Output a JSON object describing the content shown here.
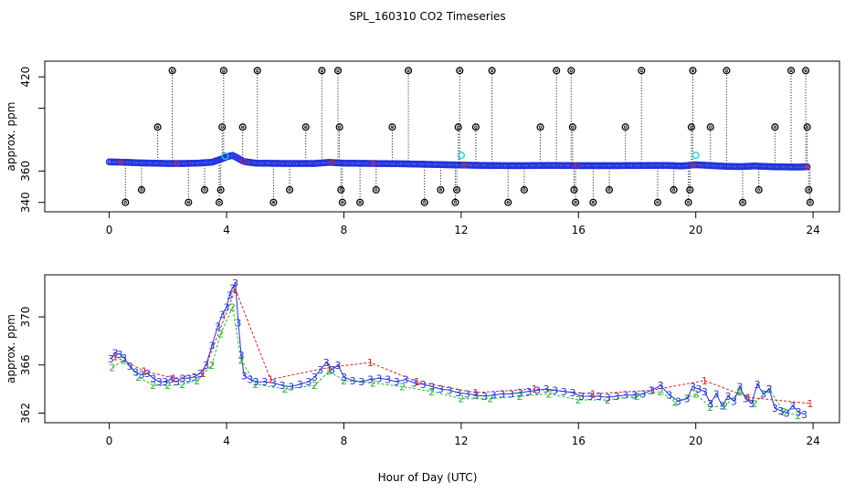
{
  "title": "SPL_160310  CO2 Timeseries",
  "xlabel": "Hour of Day (UTC)",
  "chart_data": [
    {
      "type": "scatter",
      "panel": "top",
      "ylabel": "approx. ppm",
      "xlim": [
        -2.2,
        24.9
      ],
      "ylim": [
        334,
        430
      ],
      "x_ticks": [
        0,
        4,
        8,
        12,
        16,
        20,
        24
      ],
      "y_ticks": [
        340,
        360,
        400,
        420
      ],
      "y_tick_labels": [
        "340",
        "360",
        "",
        "420"
      ],
      "baseline": {
        "x": [
          0.0,
          0.5,
          1.0,
          1.5,
          2.0,
          2.5,
          3.0,
          3.5,
          3.8,
          4.0,
          4.2,
          4.4,
          4.6,
          5.0,
          6.0,
          7.0,
          7.5,
          8.0,
          9.0,
          10.0,
          11.0,
          12.0,
          13.0,
          14.0,
          15.0,
          16.0,
          17.0,
          18.0,
          19.0,
          19.5,
          20.0,
          20.5,
          21.0,
          21.5,
          22.0,
          22.5,
          23.0,
          23.5,
          23.8
        ],
        "values": [
          365.8,
          365.6,
          365.2,
          365.0,
          364.8,
          364.8,
          365.0,
          365.6,
          367.5,
          369.0,
          370.0,
          368.0,
          366.0,
          365.0,
          364.8,
          364.8,
          365.5,
          365.0,
          364.8,
          364.6,
          364.2,
          363.8,
          363.5,
          363.4,
          363.6,
          363.4,
          363.4,
          363.5,
          363.6,
          363.2,
          364.0,
          363.5,
          363.0,
          362.8,
          363.2,
          362.8,
          362.6,
          362.5,
          362.7
        ]
      },
      "cyan_points": {
        "x": [
          3.95,
          12.0,
          20.0
        ],
        "values": [
          369.5,
          370.0,
          370.0
        ]
      },
      "spikes": [
        {
          "x": 0.55,
          "value": 340
        },
        {
          "x": 1.1,
          "value": 348
        },
        {
          "x": 1.65,
          "value": 388
        },
        {
          "x": 2.15,
          "value": 424
        },
        {
          "x": 2.7,
          "value": 340
        },
        {
          "x": 3.25,
          "value": 348
        },
        {
          "x": 3.75,
          "value": 340
        },
        {
          "x": 3.8,
          "value": 348
        },
        {
          "x": 3.85,
          "value": 388
        },
        {
          "x": 3.9,
          "value": 424
        },
        {
          "x": 4.55,
          "value": 388
        },
        {
          "x": 5.05,
          "value": 424
        },
        {
          "x": 5.6,
          "value": 340
        },
        {
          "x": 6.15,
          "value": 348
        },
        {
          "x": 6.7,
          "value": 388
        },
        {
          "x": 7.25,
          "value": 424
        },
        {
          "x": 7.8,
          "value": 424
        },
        {
          "x": 7.85,
          "value": 388
        },
        {
          "x": 7.9,
          "value": 348
        },
        {
          "x": 7.95,
          "value": 340
        },
        {
          "x": 8.55,
          "value": 340
        },
        {
          "x": 9.1,
          "value": 348
        },
        {
          "x": 9.65,
          "value": 388
        },
        {
          "x": 10.2,
          "value": 424
        },
        {
          "x": 10.75,
          "value": 340
        },
        {
          "x": 11.3,
          "value": 348
        },
        {
          "x": 11.8,
          "value": 340
        },
        {
          "x": 11.85,
          "value": 348
        },
        {
          "x": 11.9,
          "value": 388
        },
        {
          "x": 11.95,
          "value": 424
        },
        {
          "x": 12.5,
          "value": 388
        },
        {
          "x": 13.05,
          "value": 424
        },
        {
          "x": 13.6,
          "value": 340
        },
        {
          "x": 14.15,
          "value": 348
        },
        {
          "x": 14.7,
          "value": 388
        },
        {
          "x": 15.25,
          "value": 424
        },
        {
          "x": 15.75,
          "value": 424
        },
        {
          "x": 15.8,
          "value": 388
        },
        {
          "x": 15.85,
          "value": 348
        },
        {
          "x": 15.9,
          "value": 340
        },
        {
          "x": 16.5,
          "value": 340
        },
        {
          "x": 17.05,
          "value": 348
        },
        {
          "x": 17.6,
          "value": 388
        },
        {
          "x": 18.15,
          "value": 424
        },
        {
          "x": 18.7,
          "value": 340
        },
        {
          "x": 19.25,
          "value": 348
        },
        {
          "x": 19.75,
          "value": 340
        },
        {
          "x": 19.8,
          "value": 348
        },
        {
          "x": 19.85,
          "value": 388
        },
        {
          "x": 19.9,
          "value": 424
        },
        {
          "x": 20.5,
          "value": 388
        },
        {
          "x": 21.05,
          "value": 424
        },
        {
          "x": 21.6,
          "value": 340
        },
        {
          "x": 22.15,
          "value": 348
        },
        {
          "x": 22.7,
          "value": 388
        },
        {
          "x": 23.25,
          "value": 424
        },
        {
          "x": 23.75,
          "value": 424
        },
        {
          "x": 23.8,
          "value": 388
        },
        {
          "x": 23.85,
          "value": 348
        },
        {
          "x": 23.9,
          "value": 340
        }
      ]
    },
    {
      "type": "scatter",
      "panel": "bottom",
      "ylabel": "approx. ppm",
      "xlim": [
        -2.2,
        24.9
      ],
      "ylim": [
        361.2,
        373.5
      ],
      "x_ticks": [
        0,
        4,
        8,
        12,
        16,
        20,
        24
      ],
      "y_ticks": [
        362,
        366,
        370
      ],
      "marker_series": [
        {
          "marker": "3",
          "color": "#2233dd"
        },
        {
          "marker": "2",
          "color": "#22bb22"
        },
        {
          "marker": "1",
          "color": "#dd2222"
        }
      ],
      "series": [
        {
          "marker": "3",
          "x": [
            0.05,
            0.2,
            0.35,
            0.5,
            0.7,
            0.9,
            1.1,
            1.3,
            1.5,
            1.7,
            1.9,
            2.1,
            2.3,
            2.5,
            2.7,
            2.9,
            3.1,
            3.3,
            3.5,
            3.7,
            3.85,
            4.0,
            4.1,
            4.2,
            4.3,
            4.4,
            4.5,
            4.6,
            4.8,
            5.0,
            5.3,
            5.6,
            5.9,
            6.2,
            6.5,
            6.8,
            7.0,
            7.2,
            7.4,
            7.6,
            7.8,
            8.0,
            8.3,
            8.6,
            8.9,
            9.2,
            9.5,
            9.8,
            10.1,
            10.4,
            10.7,
            11.0,
            11.3,
            11.6,
            11.9,
            12.2,
            12.5,
            12.8,
            13.1,
            13.4,
            13.7,
            14.0,
            14.3,
            14.6,
            14.9,
            15.2,
            15.5,
            15.8,
            16.1,
            16.4,
            16.7,
            17.0,
            17.3,
            17.6,
            17.9,
            18.2,
            18.5,
            18.8,
            19.1,
            19.4,
            19.7,
            19.9,
            20.1,
            20.3,
            20.5,
            20.7,
            20.9,
            21.1,
            21.3,
            21.5,
            21.7,
            21.9,
            22.1,
            22.3,
            22.5,
            22.7,
            22.9,
            23.1,
            23.3,
            23.5,
            23.7
          ],
          "values": [
            366.5,
            367.0,
            366.9,
            366.6,
            365.9,
            365.4,
            365.2,
            365.3,
            364.9,
            364.6,
            364.6,
            364.8,
            364.6,
            364.9,
            364.9,
            365.0,
            365.3,
            366.0,
            367.6,
            369.2,
            370.2,
            370.8,
            371.8,
            372.4,
            372.8,
            369.5,
            366.8,
            365.1,
            364.8,
            364.6,
            364.6,
            364.5,
            364.3,
            364.2,
            364.4,
            364.6,
            365.0,
            365.6,
            366.2,
            365.6,
            366.0,
            365.0,
            364.7,
            364.6,
            364.8,
            364.9,
            364.8,
            364.6,
            364.8,
            364.5,
            364.4,
            364.2,
            364.0,
            363.9,
            363.7,
            363.6,
            363.5,
            363.4,
            363.5,
            363.6,
            363.6,
            363.7,
            363.8,
            363.9,
            364.0,
            363.9,
            363.8,
            363.7,
            363.4,
            363.4,
            363.4,
            363.3,
            363.4,
            363.5,
            363.5,
            363.6,
            363.9,
            364.3,
            363.5,
            363.0,
            363.2,
            364.2,
            364.0,
            363.8,
            362.8,
            363.6,
            362.6,
            363.4,
            363.0,
            364.2,
            363.2,
            362.8,
            364.4,
            363.6,
            364.0,
            362.4,
            362.2,
            362.0,
            362.6,
            362.1,
            361.9
          ]
        },
        {
          "marker": "2",
          "x": [
            0.1,
            0.5,
            1.0,
            1.5,
            2.0,
            2.5,
            3.0,
            3.5,
            3.8,
            4.2,
            4.5,
            5.0,
            6.0,
            7.0,
            7.5,
            8.0,
            9.0,
            10.0,
            11.0,
            12.0,
            13.0,
            14.0,
            15.0,
            16.0,
            17.0,
            18.0,
            18.8,
            19.3,
            20.0,
            20.5,
            21.0,
            21.5,
            22.0,
            22.5,
            23.0,
            23.5
          ],
          "values": [
            365.8,
            366.4,
            365.0,
            364.3,
            364.3,
            364.4,
            364.7,
            366.0,
            368.6,
            370.8,
            366.4,
            364.4,
            364.0,
            364.3,
            365.5,
            364.7,
            364.5,
            364.2,
            363.8,
            363.2,
            363.2,
            363.4,
            363.6,
            363.1,
            363.1,
            363.4,
            363.8,
            362.9,
            363.6,
            362.5,
            362.6,
            363.8,
            362.8,
            364.0,
            362.1,
            361.8
          ]
        },
        {
          "marker": "1",
          "x": [
            0.2,
            1.2,
            2.2,
            3.2,
            4.3,
            5.5,
            7.5,
            8.9,
            10.5,
            12.5,
            14.5,
            16.5,
            18.5,
            20.3,
            21.8,
            23.9
          ],
          "values": [
            366.7,
            365.5,
            364.9,
            365.3,
            372.3,
            364.8,
            365.8,
            366.2,
            364.6,
            363.7,
            364.0,
            363.6,
            363.9,
            364.7,
            363.3,
            362.8
          ]
        }
      ]
    }
  ]
}
